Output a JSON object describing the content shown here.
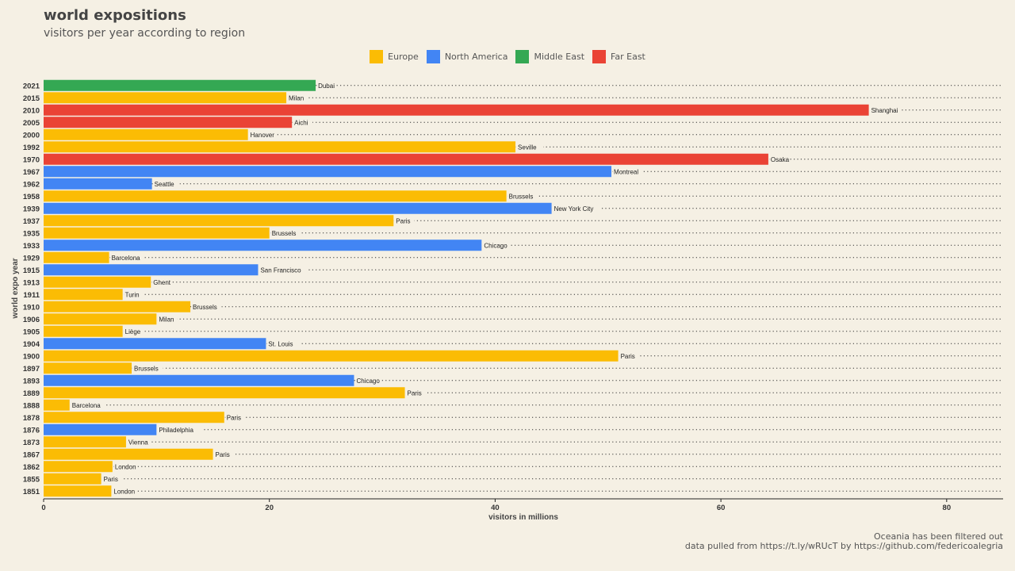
{
  "chart_data": {
    "type": "bar",
    "orientation": "horizontal",
    "title": "world expositions",
    "subtitle": "visitors per year according to region",
    "xlabel": "visitors in millions",
    "ylabel": "world expo year",
    "xlim": [
      0,
      85
    ],
    "xticks": [
      0,
      20,
      40,
      60,
      80
    ],
    "legend_position": "top",
    "legend": [
      {
        "name": "Europe",
        "color": "#fbbc04"
      },
      {
        "name": "North America",
        "color": "#4285f4"
      },
      {
        "name": "Middle East",
        "color": "#34a853"
      },
      {
        "name": "Far East",
        "color": "#ea4335"
      }
    ],
    "bars": [
      {
        "year": "2021",
        "city": "Dubai",
        "value": 24.1,
        "region": "Middle East"
      },
      {
        "year": "2015",
        "city": "Milan",
        "value": 21.5,
        "region": "Europe"
      },
      {
        "year": "2010",
        "city": "Shanghai",
        "value": 73.1,
        "region": "Far East"
      },
      {
        "year": "2005",
        "city": "Aichi",
        "value": 22.0,
        "region": "Far East"
      },
      {
        "year": "2000",
        "city": "Hanover",
        "value": 18.1,
        "region": "Europe"
      },
      {
        "year": "1992",
        "city": "Seville",
        "value": 41.8,
        "region": "Europe"
      },
      {
        "year": "1970",
        "city": "Osaka",
        "value": 64.2,
        "region": "Far East"
      },
      {
        "year": "1967",
        "city": "Montreal",
        "value": 50.3,
        "region": "North America"
      },
      {
        "year": "1962",
        "city": "Seattle",
        "value": 9.6,
        "region": "North America"
      },
      {
        "year": "1958",
        "city": "Brussels",
        "value": 41.0,
        "region": "Europe"
      },
      {
        "year": "1939",
        "city": "New York City",
        "value": 45.0,
        "region": "North America"
      },
      {
        "year": "1937",
        "city": "Paris",
        "value": 31.0,
        "region": "Europe"
      },
      {
        "year": "1935",
        "city": "Brussels",
        "value": 20.0,
        "region": "Europe"
      },
      {
        "year": "1933",
        "city": "Chicago",
        "value": 38.8,
        "region": "North America"
      },
      {
        "year": "1929",
        "city": "Barcelona",
        "value": 5.8,
        "region": "Europe"
      },
      {
        "year": "1915",
        "city": "San Francisco",
        "value": 19.0,
        "region": "North America"
      },
      {
        "year": "1913",
        "city": "Ghent",
        "value": 9.5,
        "region": "Europe"
      },
      {
        "year": "1911",
        "city": "Turin",
        "value": 7.0,
        "region": "Europe"
      },
      {
        "year": "1910",
        "city": "Brussels",
        "value": 13.0,
        "region": "Europe"
      },
      {
        "year": "1906",
        "city": "Milan",
        "value": 10.0,
        "region": "Europe"
      },
      {
        "year": "1905",
        "city": "Liège",
        "value": 7.0,
        "region": "Europe"
      },
      {
        "year": "1904",
        "city": "St. Louis",
        "value": 19.7,
        "region": "North America"
      },
      {
        "year": "1900",
        "city": "Paris",
        "value": 50.9,
        "region": "Europe"
      },
      {
        "year": "1897",
        "city": "Brussels",
        "value": 7.8,
        "region": "Europe"
      },
      {
        "year": "1893",
        "city": "Chicago",
        "value": 27.5,
        "region": "North America"
      },
      {
        "year": "1889",
        "city": "Paris",
        "value": 32.0,
        "region": "Europe"
      },
      {
        "year": "1888",
        "city": "Barcelona",
        "value": 2.3,
        "region": "Europe"
      },
      {
        "year": "1878",
        "city": "Paris",
        "value": 16.0,
        "region": "Europe"
      },
      {
        "year": "1876",
        "city": "Philadelphia",
        "value": 10.0,
        "region": "North America"
      },
      {
        "year": "1873",
        "city": "Vienna",
        "value": 7.3,
        "region": "Europe"
      },
      {
        "year": "1867",
        "city": "Paris",
        "value": 15.0,
        "region": "Europe"
      },
      {
        "year": "1862",
        "city": "London",
        "value": 6.1,
        "region": "Europe"
      },
      {
        "year": "1855",
        "city": "Paris",
        "value": 5.1,
        "region": "Europe"
      },
      {
        "year": "1851",
        "city": "London",
        "value": 6.0,
        "region": "Europe"
      }
    ]
  },
  "footer": {
    "line1": "Oceania has been filtered out",
    "line2": "data pulled from https://t.ly/wRUcT by https://github.com/federicoalegria"
  }
}
